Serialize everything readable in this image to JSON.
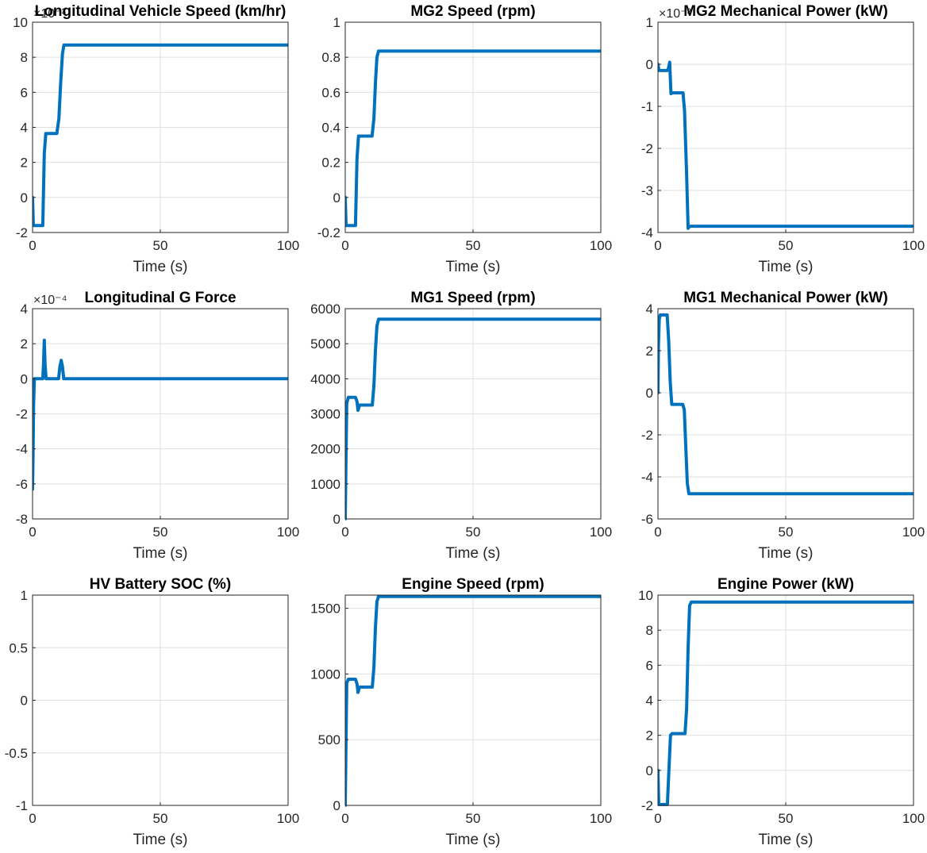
{
  "figure": {
    "background": "#ffffff",
    "axes_color": "#262626",
    "grid_color": "#dfdfdf",
    "line_color": "#0072bd"
  },
  "chart_data": [
    {
      "type": "line",
      "title": "Longitudinal Vehicle Speed (km/hr)",
      "xlabel": "Time (s)",
      "ylabel": "",
      "xlim": [
        0,
        100
      ],
      "ylim": [
        -2,
        10
      ],
      "xticks": [
        0,
        50,
        100
      ],
      "yticks": [
        -2,
        0,
        2,
        4,
        6,
        8,
        10
      ],
      "exponent": "×10⁻³",
      "grid": true,
      "series": [
        {
          "x": [
            0,
            0.3,
            0.6,
            4,
            4.6,
            5.2,
            9.5,
            10.3,
            11,
            11.7,
            12.3,
            100
          ],
          "y": [
            0,
            -1.6,
            -1.6,
            -1.6,
            2.5,
            3.65,
            3.65,
            4.5,
            6.5,
            8.2,
            8.7,
            8.7
          ]
        }
      ]
    },
    {
      "type": "line",
      "title": "MG2 Speed (rpm)",
      "xlabel": "Time (s)",
      "ylabel": "",
      "xlim": [
        0,
        100
      ],
      "ylim": [
        -0.2,
        1
      ],
      "xticks": [
        0,
        50,
        100
      ],
      "yticks": [
        -0.2,
        0,
        0.2,
        0.4,
        0.6,
        0.8,
        1
      ],
      "grid": true,
      "series": [
        {
          "x": [
            0,
            0.3,
            0.6,
            4,
            4.6,
            5.2,
            10.5,
            11.2,
            11.8,
            12.4,
            13,
            100
          ],
          "y": [
            0,
            -0.16,
            -0.16,
            -0.16,
            0.22,
            0.35,
            0.35,
            0.45,
            0.65,
            0.8,
            0.835,
            0.835
          ]
        }
      ]
    },
    {
      "type": "line",
      "title": "MG2 Mechanical Power (kW)",
      "xlabel": "Time (s)",
      "ylabel": "",
      "xlim": [
        0,
        100
      ],
      "ylim": [
        -4,
        1
      ],
      "xticks": [
        0,
        50,
        100
      ],
      "yticks": [
        -4,
        -3,
        -2,
        -1,
        0,
        1
      ],
      "exponent": "×10⁻³",
      "grid": true,
      "series": [
        {
          "x": [
            0,
            0.4,
            3.6,
            4.1,
            4.6,
            5.1,
            5.6,
            9.8,
            10.4,
            11.2,
            11.8,
            12.4,
            100
          ],
          "y": [
            0,
            -0.15,
            -0.15,
            -0.1,
            0.05,
            -0.7,
            -0.68,
            -0.68,
            -1.1,
            -2.6,
            -3.9,
            -3.85,
            -3.85
          ]
        }
      ]
    },
    {
      "type": "line",
      "title": "Longitudinal G Force",
      "xlabel": "Time (s)",
      "ylabel": "",
      "xlim": [
        0,
        100
      ],
      "ylim": [
        -8,
        4
      ],
      "xticks": [
        0,
        50,
        100
      ],
      "yticks": [
        -8,
        -6,
        -4,
        -2,
        0,
        2,
        4
      ],
      "exponent": "×10⁻⁴",
      "grid": true,
      "series": [
        {
          "x": [
            0,
            0.2,
            0.4,
            0.7,
            4,
            4.3,
            4.6,
            4.9,
            5.3,
            5.8,
            10.2,
            10.7,
            11.2,
            11.7,
            12.2,
            100
          ],
          "y": [
            -6.3,
            -4.5,
            -1.5,
            0,
            0,
            0.8,
            2.2,
            0.8,
            0,
            0,
            0,
            0.7,
            1.05,
            0.7,
            0,
            0
          ]
        }
      ]
    },
    {
      "type": "line",
      "title": "MG1 Speed (rpm)",
      "xlabel": "Time (s)",
      "ylabel": "",
      "xlim": [
        0,
        100
      ],
      "ylim": [
        0,
        6000
      ],
      "xticks": [
        0,
        50,
        100
      ],
      "yticks": [
        0,
        1000,
        2000,
        3000,
        4000,
        5000,
        6000
      ],
      "grid": true,
      "series": [
        {
          "x": [
            0,
            0.3,
            0.6,
            1.2,
            4,
            4.6,
            5,
            5.6,
            6.2,
            10.6,
            11.2,
            11.8,
            12.4,
            13,
            100
          ],
          "y": [
            0,
            1800,
            3300,
            3470,
            3470,
            3350,
            3100,
            3250,
            3250,
            3250,
            3800,
            4800,
            5500,
            5700,
            5700
          ]
        }
      ]
    },
    {
      "type": "line",
      "title": "MG1 Mechanical Power (kW)",
      "xlabel": "Time (s)",
      "ylabel": "",
      "xlim": [
        0,
        100
      ],
      "ylim": [
        -6,
        4
      ],
      "xticks": [
        0,
        50,
        100
      ],
      "yticks": [
        -6,
        -4,
        -2,
        0,
        2,
        4
      ],
      "grid": true,
      "series": [
        {
          "x": [
            0,
            0.2,
            0.5,
            0.9,
            3.6,
            4.2,
            4.8,
            5.4,
            6,
            9.7,
            10.3,
            10.9,
            11.5,
            12.1,
            100
          ],
          "y": [
            0,
            2.2,
            3.5,
            3.7,
            3.7,
            2.5,
            0.5,
            -0.55,
            -0.55,
            -0.55,
            -0.8,
            -2.6,
            -4.3,
            -4.8,
            -4.8
          ]
        }
      ]
    },
    {
      "type": "line",
      "title": "HV Battery SOC (%)",
      "xlabel": "Time (s)",
      "ylabel": "",
      "xlim": [
        0,
        100
      ],
      "ylim": [
        -1,
        1
      ],
      "xticks": [
        0,
        50,
        100
      ],
      "yticks": [
        -1,
        -0.5,
        0,
        0.5,
        1
      ],
      "grid": true,
      "series": []
    },
    {
      "type": "line",
      "title": "Engine Speed (rpm)",
      "xlabel": "Time (s)",
      "ylabel": "",
      "xlim": [
        0,
        100
      ],
      "ylim": [
        0,
        1600
      ],
      "xticks": [
        0,
        50,
        100
      ],
      "yticks": [
        0,
        500,
        1000,
        1500
      ],
      "grid": true,
      "series": [
        {
          "x": [
            0,
            0.3,
            0.6,
            1.2,
            4,
            4.6,
            5,
            5.6,
            6.2,
            10.6,
            11.2,
            11.8,
            12.4,
            13,
            100
          ],
          "y": [
            0,
            500,
            930,
            960,
            960,
            925,
            860,
            900,
            900,
            900,
            1050,
            1350,
            1550,
            1590,
            1590
          ]
        }
      ]
    },
    {
      "type": "line",
      "title": "Engine Power (kW)",
      "xlabel": "Time (s)",
      "ylabel": "",
      "xlim": [
        0,
        100
      ],
      "ylim": [
        -2,
        10
      ],
      "xticks": [
        0,
        50,
        100
      ],
      "yticks": [
        -2,
        0,
        2,
        4,
        6,
        8,
        10
      ],
      "grid": true,
      "series": [
        {
          "x": [
            0,
            0.3,
            0.7,
            3.7,
            4.3,
            4.9,
            5.5,
            10.6,
            11.2,
            11.8,
            12.4,
            13,
            100
          ],
          "y": [
            0,
            -1.95,
            -1.95,
            -1.95,
            0,
            2,
            2.1,
            2.1,
            3.5,
            7,
            9.4,
            9.6,
            9.6
          ]
        }
      ]
    }
  ]
}
